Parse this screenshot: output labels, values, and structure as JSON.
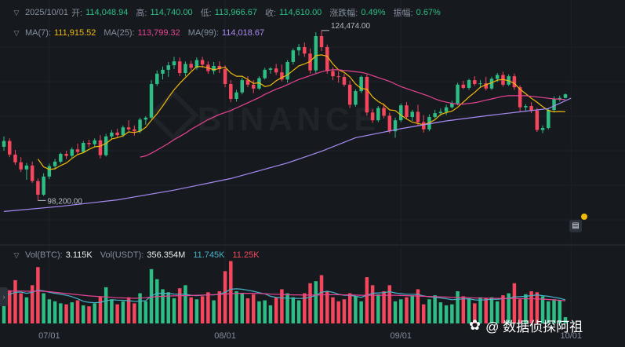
{
  "header": {
    "date": "2025/10/01",
    "open_label": "开:",
    "open": "114,048.94",
    "high_label": "高:",
    "high": "114,740.00",
    "low_label": "低:",
    "low": "113,966.67",
    "close_label": "收:",
    "close": "114,610.00",
    "change_label": "涨跌幅:",
    "change": "0.49%",
    "amplitude_label": "振幅:",
    "amplitude": "0.67%"
  },
  "ma_row": {
    "ma7_label": "MA(7):",
    "ma7": "111,915.52",
    "ma25_label": "MA(25):",
    "ma25": "113,799.32",
    "ma99_label": "MA(99):",
    "ma99": "114,018.67"
  },
  "vol_row": {
    "vol_btc_label": "Vol(BTC):",
    "vol_btc": "3.115K",
    "vol_usdt_label": "Vol(USDT):",
    "vol_usdt": "356.354M",
    "v1": "11.745K",
    "v2": "11.25K"
  },
  "watermark": "BINANCE",
  "brand": "@ 数据侦探阿祖",
  "icons": {
    "collapse": "chevron-down-icon",
    "panel": "panel-icon",
    "brand": "clover-icon"
  },
  "colors": {
    "up": "#2ebd85",
    "down": "#f6465d",
    "ma7": "#f0b90b",
    "ma25": "#e84393",
    "ma99": "#a98af5",
    "vol_ma1": "#47b3c8",
    "vol_ma2": "#e84393",
    "background": "#161a1e"
  },
  "chart_data": {
    "type": "candlestick",
    "interval": "1d",
    "x_ticks": [
      "07/01",
      "08/01",
      "09/01",
      "10/01"
    ],
    "x_tick_index": [
      8,
      39,
      70,
      100
    ],
    "annotations": [
      {
        "text": "124,474.00",
        "index": 56,
        "value": 124474
      },
      {
        "text": "98,200.00",
        "index": 6,
        "value": 98200
      }
    ],
    "ylim": [
      94000,
      127000
    ],
    "vol_max": 32000,
    "candles": [
      [
        106500,
        108100,
        105900,
        107400
      ],
      [
        107400,
        107800,
        104900,
        105300
      ],
      [
        105300,
        106000,
        103700,
        104100
      ],
      [
        104100,
        104900,
        102600,
        103000
      ],
      [
        103000,
        104000,
        101400,
        103600
      ],
      [
        103600,
        104200,
        100900,
        101200
      ],
      [
        101200,
        101600,
        98200,
        99100
      ],
      [
        99100,
        102400,
        98900,
        101900
      ],
      [
        101900,
        103900,
        101500,
        103500
      ],
      [
        103500,
        104600,
        103000,
        104200
      ],
      [
        104200,
        105600,
        103900,
        105400
      ],
      [
        105400,
        105900,
        104600,
        105100
      ],
      [
        105100,
        106400,
        104800,
        106100
      ],
      [
        106100,
        107000,
        105300,
        105700
      ],
      [
        105700,
        107400,
        105500,
        107100
      ],
      [
        107100,
        107600,
        106400,
        106900
      ],
      [
        106900,
        107800,
        106500,
        107500
      ],
      [
        107500,
        108300,
        104700,
        105200
      ],
      [
        105200,
        108500,
        105000,
        108100
      ],
      [
        108100,
        109100,
        107600,
        108700
      ],
      [
        108700,
        109300,
        107900,
        108300
      ],
      [
        108300,
        109800,
        108000,
        109500
      ],
      [
        109500,
        110600,
        108900,
        109200
      ],
      [
        109200,
        109800,
        108200,
        108900
      ],
      [
        108900,
        111000,
        108600,
        110700
      ],
      [
        110700,
        111200,
        109900,
        111000
      ],
      [
        111000,
        116800,
        110800,
        116200
      ],
      [
        116200,
        118300,
        115900,
        117800
      ],
      [
        117800,
        118900,
        116900,
        118400
      ],
      [
        118400,
        119600,
        117300,
        119100
      ],
      [
        119100,
        120400,
        118500,
        119700
      ],
      [
        119700,
        120300,
        117400,
        117900
      ],
      [
        117900,
        119700,
        117400,
        119300
      ],
      [
        119300,
        119800,
        118300,
        118700
      ],
      [
        118700,
        120300,
        118400,
        119900
      ],
      [
        119900,
        120400,
        118700,
        119200
      ],
      [
        119200,
        119700,
        117800,
        118200
      ],
      [
        118200,
        119600,
        117700,
        119000
      ],
      [
        119000,
        119700,
        117900,
        118500
      ],
      [
        118500,
        119100,
        115700,
        116200
      ],
      [
        116200,
        116800,
        113400,
        113900
      ],
      [
        113900,
        115300,
        113500,
        114900
      ],
      [
        114900,
        117200,
        114600,
        116800
      ],
      [
        116800,
        117400,
        115700,
        116100
      ],
      [
        116100,
        116800,
        114800,
        115500
      ],
      [
        115500,
        117400,
        115300,
        117100
      ],
      [
        117100,
        118700,
        116900,
        118400
      ],
      [
        118400,
        118800,
        117800,
        118600
      ],
      [
        118600,
        119300,
        117600,
        118000
      ],
      [
        118000,
        119200,
        116600,
        116900
      ],
      [
        116900,
        119900,
        116400,
        119600
      ],
      [
        119600,
        121700,
        119200,
        121400
      ],
      [
        121400,
        122400,
        120600,
        121900
      ],
      [
        121900,
        122600,
        120400,
        120900
      ],
      [
        120900,
        121700,
        117800,
        118300
      ],
      [
        118300,
        124200,
        117900,
        123600
      ],
      [
        123600,
        124474,
        121300,
        121900
      ],
      [
        121900,
        122300,
        117800,
        118200
      ],
      [
        118200,
        118800,
        116800,
        117400
      ],
      [
        117400,
        118200,
        116400,
        117300
      ],
      [
        117300,
        117800,
        115800,
        116100
      ],
      [
        116100,
        116700,
        112500,
        113000
      ],
      [
        113000,
        115400,
        112700,
        115100
      ],
      [
        115100,
        117500,
        114800,
        117300
      ],
      [
        117300,
        117700,
        111300,
        111800
      ],
      [
        111800,
        112300,
        110200,
        110600
      ],
      [
        110600,
        112800,
        110300,
        112500
      ],
      [
        112500,
        113200,
        110900,
        111300
      ],
      [
        111300,
        111800,
        108600,
        108900
      ],
      [
        108900,
        111000,
        107900,
        110600
      ],
      [
        110600,
        113200,
        110300,
        112900
      ],
      [
        112900,
        113400,
        110800,
        111100
      ],
      [
        111100,
        112200,
        110500,
        111900
      ],
      [
        111900,
        113000,
        109800,
        110300
      ],
      [
        110300,
        111400,
        108700,
        109200
      ],
      [
        109200,
        111500,
        108900,
        111100
      ],
      [
        111100,
        112200,
        110900,
        111700
      ],
      [
        111700,
        112400,
        111300,
        111900
      ],
      [
        111900,
        113000,
        111400,
        112600
      ],
      [
        112600,
        113600,
        112400,
        113200
      ],
      [
        113200,
        116400,
        112900,
        116100
      ],
      [
        116100,
        116700,
        115400,
        115600
      ],
      [
        115600,
        117000,
        115300,
        116800
      ],
      [
        116800,
        117400,
        115900,
        116200
      ],
      [
        116200,
        116800,
        115600,
        116300
      ],
      [
        116300,
        117300,
        115200,
        115500
      ],
      [
        115500,
        117300,
        115300,
        117000
      ],
      [
        117000,
        117900,
        116500,
        117600
      ],
      [
        117600,
        118100,
        115800,
        116100
      ],
      [
        116100,
        117700,
        115900,
        117400
      ],
      [
        117400,
        117800,
        115300,
        115700
      ],
      [
        115700,
        116000,
        112000,
        112600
      ],
      [
        112600,
        113100,
        112000,
        112800
      ],
      [
        112800,
        113400,
        111700,
        112100
      ],
      [
        112100,
        112500,
        108800,
        109100
      ],
      [
        109100,
        109800,
        108600,
        109400
      ],
      [
        109400,
        112500,
        109200,
        112200
      ],
      [
        112200,
        114300,
        111800,
        113900
      ],
      [
        113900,
        114400,
        113500,
        114048.94
      ],
      [
        114048.94,
        114740,
        113966.67,
        114610
      ]
    ],
    "ma7": [
      null,
      null,
      null,
      null,
      null,
      null,
      104600,
      103400,
      103000,
      103100,
      103600,
      104000,
      104700,
      105300,
      105600,
      106100,
      106500,
      106600,
      107000,
      107700,
      107900,
      108200,
      108800,
      108700,
      108900,
      109500,
      110600,
      111600,
      112800,
      114100,
      115300,
      116300,
      117200,
      118100,
      118900,
      118900,
      118700,
      118400,
      118600,
      118800,
      117900,
      117400,
      117400,
      116900,
      116300,
      116400,
      115800,
      116000,
      116700,
      117200,
      117600,
      118300,
      119000,
      119300,
      119700,
      120600,
      120700,
      120500,
      119300,
      118400,
      118000,
      117300,
      116200,
      115500,
      115400,
      114200,
      113500,
      113000,
      112200,
      112100,
      111400,
      110800,
      110300,
      110100,
      109900,
      110200,
      110700,
      111500,
      111800,
      112000,
      112600,
      113400,
      114200,
      114900,
      115700,
      116100,
      116400,
      116800,
      116900,
      116700,
      116300,
      115400,
      114700,
      114000,
      113400,
      112700,
      112100,
      111900,
      111950,
      111915.52
    ],
    "ma25": [
      null,
      null,
      null,
      null,
      null,
      null,
      null,
      null,
      null,
      null,
      null,
      null,
      null,
      null,
      null,
      null,
      null,
      null,
      null,
      null,
      null,
      null,
      null,
      null,
      104900,
      105100,
      105500,
      106000,
      106500,
      107000,
      107600,
      108100,
      108600,
      109200,
      109700,
      110200,
      110700,
      111100,
      111500,
      111800,
      112100,
      112500,
      112900,
      113300,
      113700,
      114100,
      114600,
      115000,
      115400,
      115700,
      116100,
      116500,
      116900,
      117200,
      117500,
      117800,
      118100,
      118300,
      118400,
      118400,
      118300,
      118200,
      118100,
      118000,
      117800,
      117500,
      117200,
      116900,
      116600,
      116200,
      115800,
      115500,
      115200,
      114900,
      114600,
      114300,
      113900,
      113600,
      113400,
      113200,
      113100,
      113100,
      113200,
      113300,
      113500,
      113700,
      113900,
      114100,
      114300,
      114400,
      114400,
      114400,
      114400,
      114300,
      114200,
      114100,
      114000,
      113900,
      113850,
      113799.32
    ],
    "ma99": [
      null,
      null,
      null,
      null,
      null,
      null,
      null,
      null,
      null,
      null,
      null,
      null,
      null,
      null,
      null,
      null,
      null,
      null,
      null,
      null,
      null,
      null,
      null,
      null,
      null,
      null,
      null,
      null,
      null,
      null,
      null,
      null,
      null,
      null,
      null,
      null,
      null,
      null,
      null,
      null,
      null,
      null,
      null,
      null,
      null,
      null,
      null,
      null,
      null,
      null,
      null,
      null,
      null,
      null,
      null,
      null,
      null,
      null,
      null,
      null,
      null,
      null,
      null,
      null,
      null,
      null,
      null,
      null,
      null,
      null,
      null,
      null,
      null,
      null,
      null,
      null,
      null,
      null,
      null,
      null,
      null,
      null,
      null,
      null,
      null,
      null,
      null,
      null,
      null,
      null,
      null,
      null,
      null,
      null,
      null,
      null,
      null,
      null,
      null,
      null,
      114018.67
    ],
    "ma99_path": [
      [
        0,
        96500
      ],
      [
        10,
        97300
      ],
      [
        20,
        98300
      ],
      [
        30,
        99800
      ],
      [
        40,
        101600
      ],
      [
        50,
        104000
      ],
      [
        56,
        105800
      ],
      [
        62,
        107900
      ],
      [
        70,
        109300
      ],
      [
        78,
        110500
      ],
      [
        86,
        111400
      ],
      [
        92,
        112000
      ],
      [
        96,
        112400
      ],
      [
        100,
        114018.67
      ]
    ],
    "volume": [
      14000,
      16500,
      21500,
      15000,
      13000,
      19000,
      28000,
      15000,
      12000,
      11000,
      10000,
      9500,
      10500,
      11500,
      9000,
      8500,
      10000,
      13500,
      18000,
      12000,
      9500,
      11000,
      13000,
      10000,
      15000,
      11000,
      27000,
      22000,
      17000,
      15500,
      12500,
      17500,
      19000,
      13000,
      12000,
      13500,
      15500,
      11500,
      16000,
      26000,
      31000,
      16000,
      15000,
      12500,
      14500,
      11000,
      11500,
      9000,
      13000,
      17000,
      15000,
      13000,
      11500,
      15000,
      20000,
      21000,
      24000,
      16000,
      13000,
      11000,
      12000,
      15000,
      13500,
      11000,
      23000,
      19000,
      14500,
      16000,
      19000,
      11000,
      12000,
      13000,
      14000,
      17000,
      9500,
      12000,
      14000,
      10500,
      9000,
      9500,
      16000,
      13500,
      12500,
      10000,
      13000,
      12500,
      13000,
      11000,
      14000,
      15000,
      20000,
      12000,
      14500,
      16000,
      15500,
      13500,
      11000,
      12000,
      11500,
      3115
    ],
    "vol_ma1": [
      14000,
      14500,
      15500,
      15600,
      15000,
      15500,
      16500,
      16200,
      15500,
      15000,
      14500,
      14000,
      13300,
      12300,
      11000,
      10500,
      10300,
      10500,
      11300,
      11800,
      11600,
      11500,
      11300,
      11000,
      11100,
      11300,
      13700,
      15000,
      15000,
      15000,
      14600,
      14500,
      14500,
      14000,
      13800,
      14000,
      14300,
      14200,
      14600,
      15500,
      17000,
      17200,
      17000,
      16500,
      16000,
      15300,
      14700,
      13500,
      12900,
      12700,
      12600,
      12500,
      12400,
      12500,
      13000,
      14000,
      15500,
      16000,
      15500,
      14500,
      14000,
      14000,
      13500,
      13000,
      14000,
      15000,
      15200,
      15300,
      15800,
      15200,
      14800,
      14500,
      14500,
      14400,
      13700,
      13200,
      13000,
      12700,
      12300,
      11800,
      12000,
      12200,
      12200,
      11700,
      11600,
      11800,
      12000,
      12000,
      12300,
      12500,
      13200,
      13300,
      13500,
      13800,
      14200,
      13800,
      13500,
      13000,
      12500,
      11745
    ],
    "vol_ma2": [
      16000,
      16000,
      16100,
      16100,
      16000,
      16000,
      16100,
      16000,
      15800,
      15500,
      15200,
      14900,
      14600,
      14300,
      14000,
      13700,
      13500,
      13300,
      13200,
      13000,
      12800,
      12700,
      12600,
      12500,
      12600,
      12800,
      13100,
      13300,
      13500,
      13600,
      13700,
      13800,
      13800,
      13900,
      14000,
      14100,
      14200,
      14300,
      14400,
      14600,
      14800,
      14900,
      15000,
      15000,
      15000,
      14900,
      14800,
      14600,
      14500,
      14400,
      14300,
      14200,
      14200,
      14100,
      14100,
      14100,
      14200,
      14300,
      14300,
      14300,
      14200,
      14200,
      14100,
      14000,
      14000,
      14000,
      14000,
      14000,
      14000,
      14000,
      13900,
      13800,
      13700,
      13600,
      13500,
      13400,
      13300,
      13200,
      13100,
      13000,
      12900,
      12900,
      12800,
      12700,
      12600,
      12600,
      12500,
      12500,
      12400,
      12400,
      12400,
      12300,
      12300,
      12200,
      12200,
      12100,
      11900,
      11700,
      11500,
      11250
    ]
  }
}
